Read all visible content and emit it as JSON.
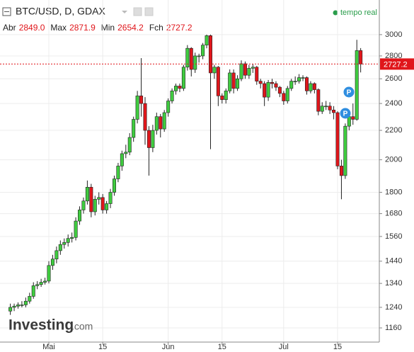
{
  "header": {
    "symbol": "BTC/USD, D, GDAX",
    "fields": [
      {
        "label": "Abr",
        "value": "2849.0"
      },
      {
        "label": "Max",
        "value": "2871.9"
      },
      {
        "label": "Min",
        "value": "2654.2"
      },
      {
        "label": "Fch",
        "value": "2727.2"
      }
    ],
    "status": "tempo real"
  },
  "logo": {
    "name": "Investing",
    "suffix": ".com"
  },
  "events": [
    "P",
    "P"
  ],
  "chart_data": {
    "type": "candlestick",
    "log_scale": true,
    "grid": true,
    "up_color": "#3fcc3f",
    "down_color": "#e0161b",
    "categories": [
      null,
      null,
      null,
      null,
      null,
      null,
      null,
      null,
      null,
      null,
      "Mai",
      null,
      null,
      null,
      null,
      null,
      null,
      null,
      null,
      null,
      null,
      null,
      null,
      null,
      "15",
      null,
      null,
      null,
      null,
      null,
      null,
      null,
      null,
      null,
      null,
      null,
      null,
      null,
      null,
      null,
      null,
      "Jun",
      null,
      null,
      null,
      null,
      null,
      null,
      null,
      null,
      null,
      null,
      null,
      null,
      null,
      "15",
      null,
      null,
      null,
      null,
      null,
      null,
      null,
      null,
      null,
      null,
      null,
      null,
      null,
      null,
      null,
      "Jul",
      null,
      null,
      null,
      null,
      null,
      null,
      null,
      null,
      null,
      null,
      null,
      null,
      null,
      "15",
      null,
      null,
      null,
      null,
      null,
      null
    ],
    "open": [
      1225,
      1240,
      1245,
      1250,
      1250,
      1265,
      1285,
      1330,
      1335,
      1345,
      1350,
      1420,
      1450,
      1490,
      1520,
      1530,
      1550,
      1555,
      1640,
      1700,
      1750,
      1830,
      1690,
      1760,
      1770,
      1700,
      1735,
      1800,
      1880,
      1960,
      2040,
      2050,
      2150,
      2280,
      2460,
      2400,
      2200,
      2080,
      2200,
      2300,
      2210,
      2330,
      2420,
      2500,
      2540,
      2520,
      2700,
      2870,
      2680,
      2800,
      2800,
      2900,
      2990,
      2650,
      2700,
      2460,
      2430,
      2500,
      2650,
      2520,
      2600,
      2730,
      2630,
      2690,
      2700,
      2580,
      2560,
      2450,
      2570,
      2560,
      2530,
      2480,
      2420,
      2520,
      2580,
      2580,
      2610,
      2610,
      2500,
      2560,
      2510,
      2340,
      2380,
      2380,
      2350,
      2330,
      1960,
      1900,
      2230,
      2300,
      2280,
      2849.0
    ],
    "high": [
      1255,
      1255,
      1260,
      1265,
      1280,
      1300,
      1345,
      1350,
      1360,
      1365,
      1440,
      1470,
      1510,
      1540,
      1550,
      1570,
      1580,
      1660,
      1720,
      1770,
      1870,
      1850,
      1780,
      1800,
      1790,
      1750,
      1820,
      1900,
      1980,
      2060,
      2100,
      2180,
      2300,
      2500,
      2780,
      2450,
      2230,
      2240,
      2330,
      2320,
      2350,
      2440,
      2520,
      2560,
      2560,
      2720,
      2900,
      2880,
      2830,
      2820,
      2920,
      3000,
      3000,
      2720,
      2710,
      2480,
      2520,
      2680,
      2680,
      2630,
      2760,
      2750,
      2720,
      2730,
      2710,
      2600,
      2580,
      2590,
      2600,
      2580,
      2540,
      2500,
      2540,
      2600,
      2620,
      2640,
      2630,
      2620,
      2580,
      2570,
      2520,
      2410,
      2420,
      2410,
      2380,
      2340,
      2000,
      2250,
      2330,
      2400,
      2950,
      2871.9
    ],
    "low": [
      1210,
      1225,
      1235,
      1240,
      1240,
      1255,
      1275,
      1315,
      1325,
      1335,
      1340,
      1400,
      1430,
      1470,
      1500,
      1510,
      1530,
      1540,
      1620,
      1680,
      1730,
      1660,
      1670,
      1730,
      1680,
      1680,
      1710,
      1780,
      1860,
      1930,
      2010,
      2030,
      2120,
      2250,
      2300,
      2100,
      1900,
      2050,
      2170,
      2150,
      2190,
      2300,
      2400,
      2470,
      2490,
      2500,
      2670,
      2620,
      2650,
      2740,
      2770,
      2870,
      2070,
      2600,
      2380,
      2400,
      2400,
      2480,
      2480,
      2500,
      2580,
      2600,
      2600,
      2650,
      2550,
      2520,
      2380,
      2420,
      2520,
      2500,
      2450,
      2390,
      2400,
      2500,
      2550,
      2560,
      2580,
      2470,
      2480,
      2480,
      2310,
      2320,
      2350,
      2320,
      2280,
      1940,
      1760,
      1880,
      2200,
      2240,
      2270,
      2654.2
    ],
    "close": [
      1240,
      1245,
      1250,
      1250,
      1265,
      1285,
      1330,
      1335,
      1345,
      1350,
      1420,
      1450,
      1490,
      1520,
      1530,
      1550,
      1555,
      1640,
      1700,
      1750,
      1830,
      1690,
      1760,
      1770,
      1700,
      1735,
      1800,
      1880,
      1960,
      2040,
      2050,
      2150,
      2280,
      2460,
      2400,
      2200,
      2080,
      2200,
      2300,
      2210,
      2330,
      2420,
      2500,
      2540,
      2520,
      2700,
      2870,
      2680,
      2800,
      2800,
      2900,
      2990,
      2650,
      2700,
      2460,
      2430,
      2500,
      2650,
      2520,
      2600,
      2730,
      2630,
      2690,
      2700,
      2580,
      2560,
      2450,
      2570,
      2560,
      2530,
      2480,
      2420,
      2520,
      2580,
      2580,
      2610,
      2610,
      2500,
      2560,
      2510,
      2340,
      2380,
      2380,
      2350,
      2330,
      1960,
      1900,
      2230,
      2300,
      2280,
      2849.0,
      2727.2
    ],
    "ylim": [
      1108,
      3356
    ],
    "yticks": [
      1160,
      1240,
      1340,
      1440,
      1560,
      1680,
      1800,
      2000,
      2200,
      2400,
      2600,
      2800,
      3000
    ]
  }
}
